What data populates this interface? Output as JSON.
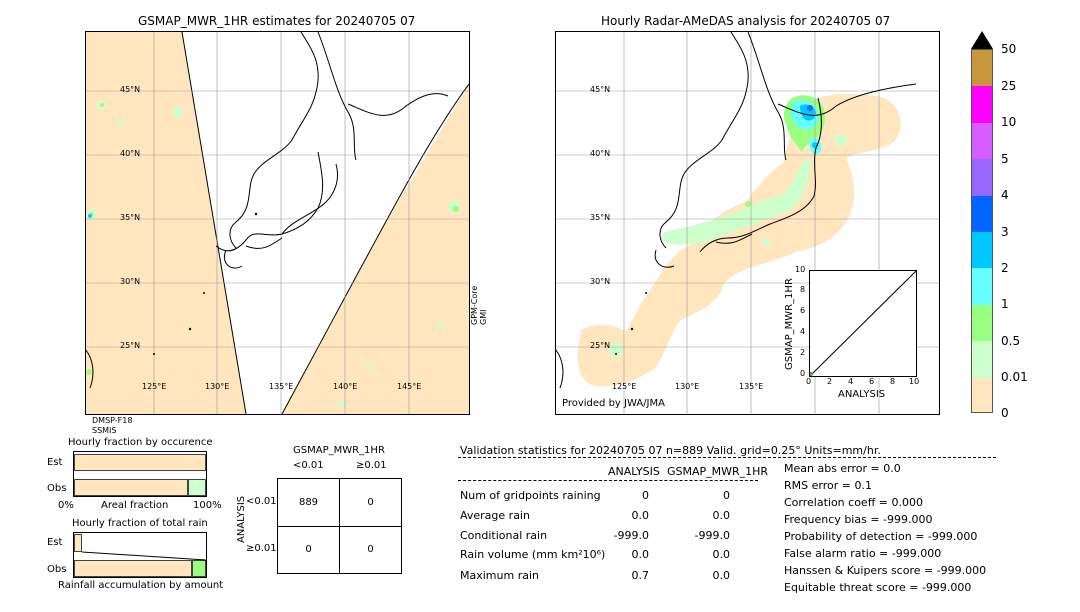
{
  "left_map": {
    "title": "GSMAP_MWR_1HR estimates for 20240705 07",
    "lat_labels": [
      "45°N",
      "40°N",
      "35°N",
      "30°N",
      "25°N"
    ],
    "lon_labels": [
      "125°E",
      "130°E",
      "135°E",
      "140°E",
      "145°E"
    ],
    "sensor_right": "GPM-Core\nGMI",
    "sensor_bottom": "DMSP-F18\nSSMIS"
  },
  "right_map": {
    "title": "Hourly Radar-AMeDAS analysis for 20240705 07",
    "lat_labels": [
      "45°N",
      "40°N",
      "35°N",
      "30°N",
      "25°N"
    ],
    "lon_labels": [
      "125°E",
      "130°E",
      "135°E"
    ],
    "credit": "Provided by JWA/JMA",
    "inset": {
      "ylabel": "GSMAP_MWR_1HR",
      "xlabel": "ANALYSIS",
      "ticks": [
        "0",
        "2",
        "4",
        "6",
        "8",
        "10"
      ],
      "y_ticks": [
        "0",
        "2",
        "4",
        "6",
        "8",
        "10"
      ]
    }
  },
  "colorbar": {
    "labels": [
      "50",
      "25",
      "10",
      "5",
      "4",
      "3",
      "2",
      "1",
      "0.5",
      "0.01",
      "0"
    ],
    "colors": [
      "#c8963c",
      "#ff00ff",
      "#d65cff",
      "#9966ff",
      "#0066ff",
      "#00c8ff",
      "#66ffff",
      "#99ff80",
      "#ccffcc",
      "#ffe6bf"
    ]
  },
  "fraction": {
    "title1": "Hourly fraction by occurence",
    "est": "Est",
    "obs": "Obs",
    "axis_left": "0%",
    "axis_mid": "Areal fraction",
    "axis_right": "100%",
    "title2": "Hourly fraction of total rain",
    "est2": "Est",
    "obs2": "Obs",
    "axis2": "Rainfall accumulation by amount"
  },
  "contingency": {
    "title": "GSMAP_MWR_1HR",
    "col1": "<0.01",
    "col2": "≥0.01",
    "row_label": "ANALYSIS",
    "row1": "<0.01",
    "row2": "≥0.01",
    "cells": [
      "889",
      "0",
      "0",
      "0"
    ]
  },
  "stats": {
    "header": "Validation statistics for 20240705 07  n=889 Valid. grid=0.25° Units=mm/hr.",
    "col_analysis": "ANALYSIS",
    "col_gsmap": "GSMAP_MWR_1HR",
    "rows": [
      {
        "label": "Num of gridpoints raining",
        "a": "0",
        "g": "0"
      },
      {
        "label": "Average rain",
        "a": "0.0",
        "g": "0.0"
      },
      {
        "label": "Conditional rain",
        "a": "-999.0",
        "g": "-999.0"
      },
      {
        "label": "Rain volume (mm km²10⁶)",
        "a": "0.0",
        "g": "0.0"
      },
      {
        "label": "Maximum rain",
        "a": "0.7",
        "g": "0.0"
      }
    ],
    "scores": [
      "Mean abs error =    0.0",
      "RMS error =    0.1",
      "Correlation coeff =  0.000",
      "Frequency bias = -999.000",
      "Probability of detection = -999.000",
      "False alarm ratio = -999.000",
      "Hanssen & Kuipers score = -999.000",
      "Equitable threat score = -999.000"
    ]
  }
}
